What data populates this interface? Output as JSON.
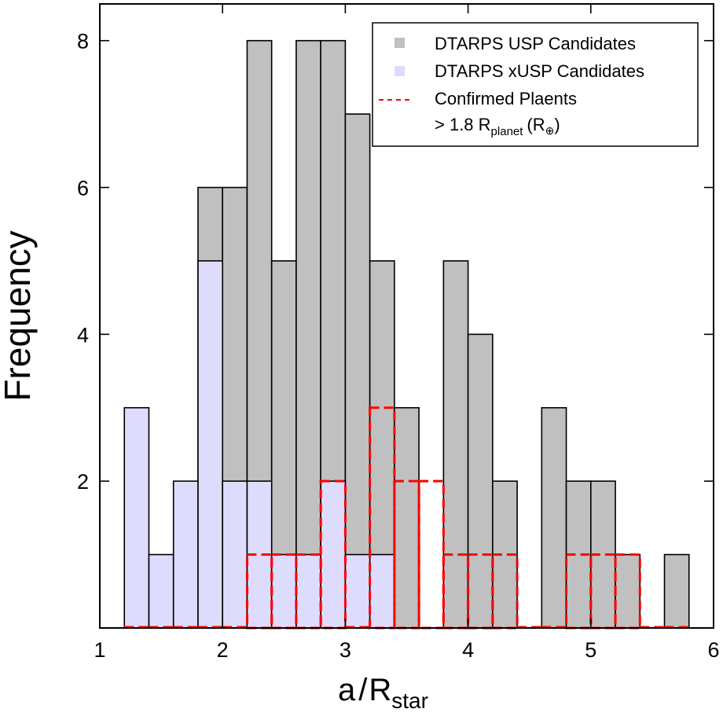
{
  "chart_data": {
    "type": "bar",
    "xlabel": {
      "main": "a",
      "slash": "/",
      "R": "R",
      "sub": "star"
    },
    "ylabel": "Frequency",
    "xlim": [
      1,
      6
    ],
    "ylim": [
      0,
      8.5
    ],
    "xticks": [
      1,
      2,
      3,
      4,
      5,
      6
    ],
    "yticks": [
      2,
      4,
      6,
      8
    ],
    "bin_width": 0.2,
    "grid": false,
    "legend_position": "top-right",
    "series": [
      {
        "name": "DTARPS USP Candidates",
        "style": "filled",
        "color": "#c0c0c0",
        "bins": [
          {
            "x": 1.9,
            "y": 6
          },
          {
            "x": 2.1,
            "y": 6
          },
          {
            "x": 2.3,
            "y": 8
          },
          {
            "x": 2.5,
            "y": 5
          },
          {
            "x": 2.7,
            "y": 8
          },
          {
            "x": 2.9,
            "y": 8
          },
          {
            "x": 3.1,
            "y": 7
          },
          {
            "x": 3.3,
            "y": 5
          },
          {
            "x": 3.5,
            "y": 3
          },
          {
            "x": 3.9,
            "y": 5
          },
          {
            "x": 4.1,
            "y": 4
          },
          {
            "x": 4.3,
            "y": 2
          },
          {
            "x": 4.7,
            "y": 3
          },
          {
            "x": 4.9,
            "y": 2
          },
          {
            "x": 5.1,
            "y": 2
          },
          {
            "x": 5.3,
            "y": 1
          },
          {
            "x": 5.7,
            "y": 1
          }
        ]
      },
      {
        "name": "DTARPS xUSP Candidates",
        "style": "filled",
        "color": "#dedcfc",
        "bins": [
          {
            "x": 1.3,
            "y": 3
          },
          {
            "x": 1.5,
            "y": 1
          },
          {
            "x": 1.7,
            "y": 2
          },
          {
            "x": 1.9,
            "y": 5
          },
          {
            "x": 2.1,
            "y": 2
          },
          {
            "x": 2.3,
            "y": 2
          },
          {
            "x": 2.5,
            "y": 1
          },
          {
            "x": 2.7,
            "y": 1
          },
          {
            "x": 2.9,
            "y": 2
          },
          {
            "x": 3.1,
            "y": 1
          },
          {
            "x": 3.3,
            "y": 1
          }
        ]
      },
      {
        "name": "Confirmed Plaents",
        "name_line2": {
          "prefix": "> 1.8 R",
          "sub": "planet",
          "paren": "(R",
          "earth": "⊕",
          "close": ")"
        },
        "style": "dashed-step",
        "color": "#ff0000",
        "bins": [
          {
            "x": 1.3,
            "y": 0
          },
          {
            "x": 1.5,
            "y": 0
          },
          {
            "x": 1.7,
            "y": 0
          },
          {
            "x": 1.9,
            "y": 0
          },
          {
            "x": 2.1,
            "y": 0
          },
          {
            "x": 2.3,
            "y": 1
          },
          {
            "x": 2.5,
            "y": 1
          },
          {
            "x": 2.7,
            "y": 1
          },
          {
            "x": 2.9,
            "y": 2
          },
          {
            "x": 3.1,
            "y": 0
          },
          {
            "x": 3.3,
            "y": 3
          },
          {
            "x": 3.5,
            "y": 2
          },
          {
            "x": 3.7,
            "y": 2
          },
          {
            "x": 3.9,
            "y": 1
          },
          {
            "x": 4.1,
            "y": 1
          },
          {
            "x": 4.3,
            "y": 1
          },
          {
            "x": 4.5,
            "y": 0
          },
          {
            "x": 4.7,
            "y": 0
          },
          {
            "x": 4.9,
            "y": 1
          },
          {
            "x": 5.1,
            "y": 1
          },
          {
            "x": 5.3,
            "y": 1
          },
          {
            "x": 5.5,
            "y": 0
          },
          {
            "x": 5.7,
            "y": 0
          }
        ]
      }
    ]
  }
}
